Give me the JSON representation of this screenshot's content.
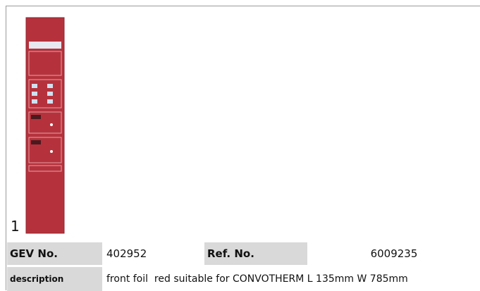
{
  "image_label": "1",
  "table": {
    "rows": [
      [
        "GEV No.",
        "402952",
        "Ref. No.",
        "6009235"
      ],
      [
        "description",
        "front foil  red suitable for CONVOTHERM L 135mm W 785mm"
      ]
    ]
  }
}
